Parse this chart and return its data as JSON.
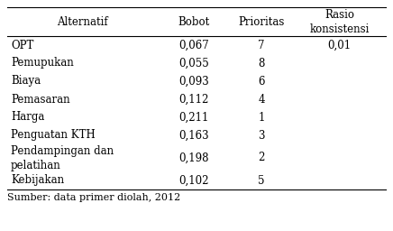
{
  "headers": [
    "Alternatif",
    "Bobot",
    "Prioritas",
    "Rasio\nkonsistensi"
  ],
  "rows": [
    [
      "OPT",
      "0,067",
      "7",
      "0,01"
    ],
    [
      "Pemupukan",
      "0,055",
      "8",
      ""
    ],
    [
      "Biaya",
      "0,093",
      "6",
      ""
    ],
    [
      "Pemasaran",
      "0,112",
      "4",
      ""
    ],
    [
      "Harga",
      "0,211",
      "1",
      ""
    ],
    [
      "Penguatan KTH",
      "0,163",
      "3",
      ""
    ],
    [
      "Pendampingan dan\npelatihan",
      "0,198",
      "2",
      ""
    ],
    [
      "Kebijakan",
      "0,102",
      "5",
      ""
    ]
  ],
  "footer": "Sumber: data primer diolah, 2012",
  "font_size": 8.5,
  "header_font_size": 8.5,
  "footer_font_size": 8.0,
  "bg_color": "#ffffff",
  "line_color": "#000000"
}
